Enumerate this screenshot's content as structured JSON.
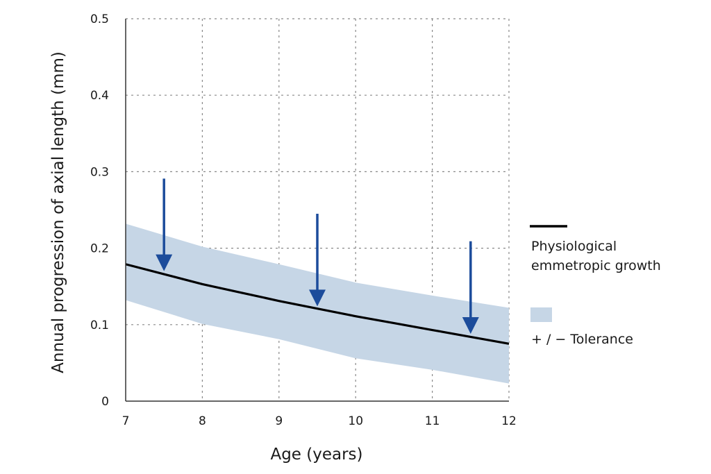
{
  "chart_data": {
    "type": "line",
    "title": "",
    "xlabel": "Age (years)",
    "ylabel": "Annual progression of axial length (mm)",
    "xlim": [
      7,
      12
    ],
    "ylim": [
      0,
      0.5
    ],
    "x_ticks": [
      "7",
      "8",
      "9",
      "10",
      "11",
      "12"
    ],
    "y_ticks": [
      "0",
      "0.1",
      "0.2",
      "0.3",
      "0.4",
      "0.5"
    ],
    "grid": true,
    "legend_position": "right",
    "series": [
      {
        "name": "Physiological emmetropic growth",
        "color": "#000000",
        "x": [
          7,
          7.5,
          8,
          8.5,
          9,
          9.5,
          10,
          10.5,
          11,
          11.5,
          12
        ],
        "y": [
          0.179,
          0.166,
          0.153,
          0.142,
          0.131,
          0.121,
          0.111,
          0.102,
          0.093,
          0.084,
          0.075
        ]
      }
    ],
    "tolerance_band": {
      "name": "+/− Tolerance",
      "color": "#c6d6e6",
      "x": [
        7,
        8,
        9,
        10,
        11,
        12
      ],
      "upper": [
        0.232,
        0.202,
        0.179,
        0.155,
        0.138,
        0.122
      ],
      "lower": [
        0.132,
        0.101,
        0.081,
        0.056,
        0.041,
        0.023
      ]
    },
    "arrows": {
      "color": "#1c4c9b",
      "items": [
        {
          "x": 7.5,
          "y_start": 0.291,
          "y_end": 0.17
        },
        {
          "x": 9.5,
          "y_start": 0.245,
          "y_end": 0.124
        },
        {
          "x": 11.5,
          "y_start": 0.209,
          "y_end": 0.088
        }
      ]
    },
    "legend": [
      {
        "label": "Physiological emmetropic growth",
        "lines": [
          "Physiological",
          "emmetropic growth"
        ],
        "kind": "line"
      },
      {
        "label": "+/− Tolerance",
        "lines": [
          "+ / −  Tolerance"
        ],
        "kind": "band"
      }
    ]
  }
}
